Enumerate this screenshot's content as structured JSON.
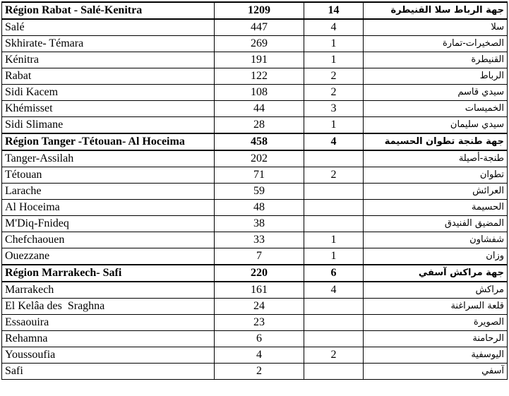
{
  "table": {
    "sections": [
      {
        "header": {
          "name": "Région Rabat - Salé-Kenitra",
          "a": 1209,
          "b": 14,
          "arabic": "جهة الرباط سلا القنيطرة"
        },
        "rows": [
          {
            "name": "Salé",
            "a": 447,
            "b": 4,
            "arabic": "سلا"
          },
          {
            "name": "Skhirate- Témara",
            "a": 269,
            "b": 1,
            "arabic": "الصخيرات-تمارة"
          },
          {
            "name": "Kénitra",
            "a": 191,
            "b": 1,
            "arabic": "القنيطرة"
          },
          {
            "name": "Rabat",
            "a": 122,
            "b": 2,
            "arabic": "الرباط"
          },
          {
            "name": "Sidi Kacem",
            "a": 108,
            "b": 2,
            "arabic": "سيدي قاسم"
          },
          {
            "name": "Khémisset",
            "a": 44,
            "b": 3,
            "arabic": "الخميسات"
          },
          {
            "name": "Sidi Slimane",
            "a": 28,
            "b": 1,
            "arabic": "سيدي سليمان"
          }
        ]
      },
      {
        "header": {
          "name": "Région Tanger -Tétouan- Al Hoceima",
          "a": 458,
          "b": 4,
          "arabic": "جهة طنجة تطوان الحسيمة"
        },
        "rows": [
          {
            "name": "Tanger-Assilah",
            "a": 202,
            "b": null,
            "arabic": "طنجة-أصيلة"
          },
          {
            "name": "Tétouan",
            "a": 71,
            "b": 2,
            "arabic": "تطوان"
          },
          {
            "name": "Larache",
            "a": 59,
            "b": null,
            "arabic": "العرائش"
          },
          {
            "name": "Al Hoceima",
            "a": 48,
            "b": null,
            "arabic": "الحسيمة"
          },
          {
            "name": "M'Diq-Fnideq",
            "a": 38,
            "b": null,
            "arabic": "المضيق الفنيدق"
          },
          {
            "name": "Chefchaouen",
            "a": 33,
            "b": 1,
            "arabic": "شفشاون"
          },
          {
            "name": "Ouezzane",
            "a": 7,
            "b": 1,
            "arabic": "وزان"
          }
        ]
      },
      {
        "header": {
          "name": "Région Marrakech- Safi",
          "a": 220,
          "b": 6,
          "arabic": "جهة مراكش آسفي"
        },
        "rows": [
          {
            "name": "Marrakech",
            "a": 161,
            "b": 4,
            "arabic": "مراكش"
          },
          {
            "name": "El Kelâa des  Sraghna",
            "a": 24,
            "b": null,
            "arabic": "قلعة السراغنة"
          },
          {
            "name": "Essaouira",
            "a": 23,
            "b": null,
            "arabic": "الصويرة"
          },
          {
            "name": "Rehamna",
            "a": 6,
            "b": null,
            "arabic": "الرحامنة"
          },
          {
            "name": "Youssoufia",
            "a": 4,
            "b": 2,
            "arabic": "اليوسفية"
          },
          {
            "name": "Safi",
            "a": 2,
            "b": null,
            "arabic": "آسفي"
          }
        ]
      }
    ]
  }
}
